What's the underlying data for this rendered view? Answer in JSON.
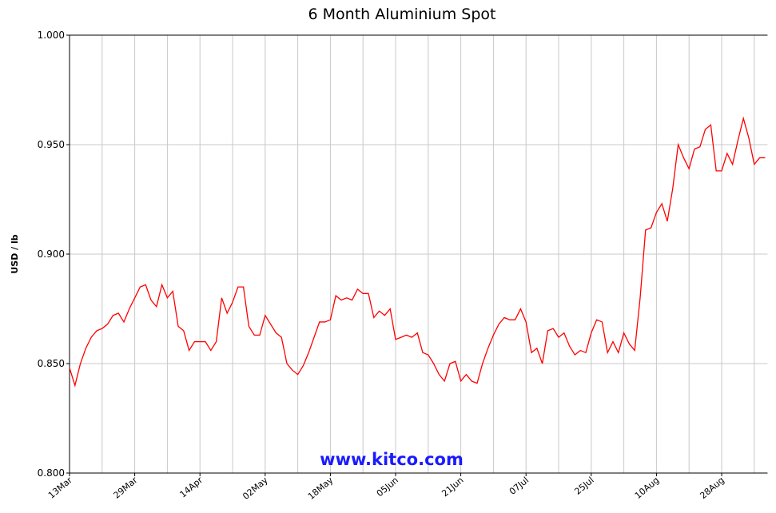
{
  "chart_data": {
    "type": "line",
    "title": "6 Month Aluminium Spot",
    "ylabel": "USD / lb",
    "watermark": "www.kitco.com",
    "categories": [
      "13Mar",
      null,
      null,
      null,
      null,
      null,
      null,
      null,
      null,
      null,
      null,
      null,
      "29Mar",
      null,
      null,
      null,
      null,
      null,
      null,
      null,
      null,
      null,
      null,
      null,
      "14Apr",
      null,
      null,
      null,
      null,
      null,
      null,
      null,
      null,
      null,
      null,
      null,
      "02May",
      null,
      null,
      null,
      null,
      null,
      null,
      null,
      null,
      null,
      null,
      null,
      "18May",
      null,
      null,
      null,
      null,
      null,
      null,
      null,
      null,
      null,
      null,
      null,
      "05Jun",
      null,
      null,
      null,
      null,
      null,
      null,
      null,
      null,
      null,
      null,
      null,
      "21Jun",
      null,
      null,
      null,
      null,
      null,
      null,
      null,
      null,
      null,
      null,
      null,
      "07Jul",
      null,
      null,
      null,
      null,
      null,
      null,
      null,
      null,
      null,
      null,
      null,
      "25Jul",
      null,
      null,
      null,
      null,
      null,
      null,
      null,
      null,
      null,
      null,
      null,
      "10Aug",
      null,
      null,
      null,
      null,
      null,
      null,
      null,
      null,
      null,
      null,
      null,
      "28Aug",
      null,
      null,
      null,
      null,
      null,
      null,
      null,
      null
    ],
    "series": [
      {
        "name": "Aluminium Spot",
        "color": "#ff0000",
        "values": [
          0.848,
          0.84,
          0.85,
          0.857,
          0.862,
          0.865,
          0.866,
          0.868,
          0.872,
          0.873,
          0.869,
          0.875,
          0.88,
          0.885,
          0.886,
          0.879,
          0.876,
          0.886,
          0.88,
          0.883,
          0.867,
          0.865,
          0.856,
          0.86,
          0.86,
          0.86,
          0.856,
          0.86,
          0.88,
          0.873,
          0.878,
          0.885,
          0.885,
          0.867,
          0.863,
          0.863,
          0.872,
          0.868,
          0.864,
          0.862,
          0.85,
          0.847,
          0.845,
          0.849,
          0.855,
          0.862,
          0.869,
          0.869,
          0.87,
          0.881,
          0.879,
          0.88,
          0.879,
          0.884,
          0.882,
          0.882,
          0.871,
          0.874,
          0.872,
          0.875,
          0.861,
          0.862,
          0.863,
          0.862,
          0.864,
          0.855,
          0.854,
          0.85,
          0.845,
          0.842,
          0.85,
          0.851,
          0.842,
          0.845,
          0.842,
          0.841,
          0.85,
          0.857,
          0.863,
          0.868,
          0.871,
          0.87,
          0.87,
          0.875,
          0.869,
          0.855,
          0.857,
          0.85,
          0.865,
          0.866,
          0.862,
          0.864,
          0.858,
          0.854,
          0.856,
          0.855,
          0.864,
          0.87,
          0.869,
          0.855,
          0.86,
          0.855,
          0.864,
          0.859,
          0.856,
          0.88,
          0.911,
          0.912,
          0.919,
          0.923,
          0.915,
          0.93,
          0.95,
          0.944,
          0.939,
          0.948,
          0.949,
          0.957,
          0.959,
          0.938,
          0.938,
          0.946,
          0.941,
          0.952,
          0.962,
          0.953,
          0.941,
          0.944,
          0.944
        ]
      }
    ],
    "ylim": [
      0.8,
      1.0
    ],
    "yticks": [
      {
        "value": 0.8,
        "label": "0.800"
      },
      {
        "value": 0.85,
        "label": "0.850"
      },
      {
        "value": 0.9,
        "label": "0.900"
      },
      {
        "value": 0.95,
        "label": "0.950"
      },
      {
        "value": 1.0,
        "label": "1.000"
      }
    ],
    "grid": true
  }
}
